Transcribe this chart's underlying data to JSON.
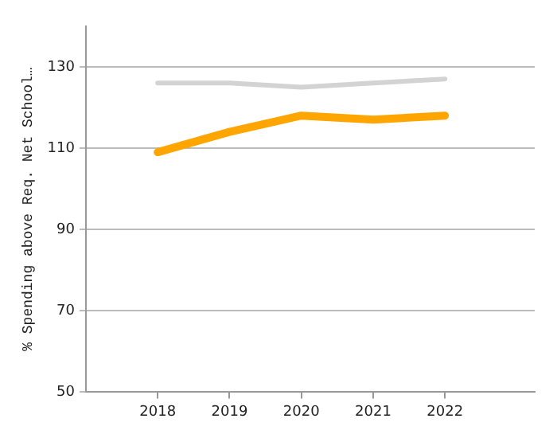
{
  "chart_data": {
    "type": "line",
    "ylabel": "% Spending above Req. Net School…",
    "x": [
      2018,
      2019,
      2020,
      2021,
      2022
    ],
    "xlim": [
      2017,
      2023.25
    ],
    "xticks": [
      2018,
      2019,
      2020,
      2021,
      2022
    ],
    "ylim": [
      50,
      140
    ],
    "yticks": [
      50,
      70,
      90,
      110,
      130
    ],
    "grid": "y",
    "legend": false,
    "marker": "none",
    "series": [
      {
        "color": "#d3d3d3",
        "values": [
          126,
          126,
          125,
          126,
          127
        ]
      },
      {
        "color": "#ffa500",
        "values": [
          109,
          114,
          118,
          117,
          118
        ]
      }
    ]
  }
}
